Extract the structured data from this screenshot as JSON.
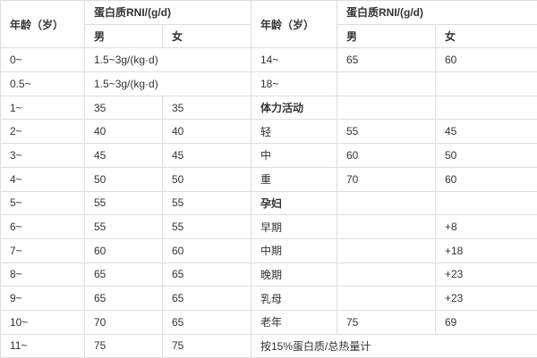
{
  "colors": {
    "border": "#dddddd",
    "text": "#333333",
    "background": "#ffffff"
  },
  "chart_data": {
    "type": "table",
    "title": "",
    "header_row_1": [
      {
        "text": "年龄（岁）",
        "rowspan": 2
      },
      {
        "text": "蛋白质RNI/(g/d)",
        "colspan": 2
      },
      {
        "text": "年龄（岁）",
        "rowspan": 2
      },
      {
        "text": "蛋白质RNI/(g/d)",
        "colspan": 2
      }
    ],
    "header_row_2": [
      {
        "text": "男"
      },
      {
        "text": "女"
      },
      {
        "text": "男"
      },
      {
        "text": "女"
      }
    ],
    "rows": [
      [
        {
          "text": "0~"
        },
        {
          "text": "1.5~3g/(kg·d)",
          "colspan": 2
        },
        {
          "text": "14~"
        },
        {
          "text": "65"
        },
        {
          "text": "60"
        }
      ],
      [
        {
          "text": "0.5~"
        },
        {
          "text": "1.5~3g/(kg·d)",
          "colspan": 2
        },
        {
          "text": "18~"
        },
        {
          "text": ""
        },
        {
          "text": ""
        }
      ],
      [
        {
          "text": "1~"
        },
        {
          "text": "35"
        },
        {
          "text": "35"
        },
        {
          "text": "体力活动",
          "bold": true
        },
        {
          "text": ""
        },
        {
          "text": ""
        }
      ],
      [
        {
          "text": "2~"
        },
        {
          "text": "40"
        },
        {
          "text": "40"
        },
        {
          "text": "轻"
        },
        {
          "text": "55"
        },
        {
          "text": "45"
        }
      ],
      [
        {
          "text": "3~"
        },
        {
          "text": "45"
        },
        {
          "text": "45"
        },
        {
          "text": "中"
        },
        {
          "text": "60"
        },
        {
          "text": "50"
        }
      ],
      [
        {
          "text": "4~"
        },
        {
          "text": "50"
        },
        {
          "text": "50"
        },
        {
          "text": "重"
        },
        {
          "text": "70"
        },
        {
          "text": "60"
        }
      ],
      [
        {
          "text": "5~"
        },
        {
          "text": "55"
        },
        {
          "text": "55"
        },
        {
          "text": "孕妇",
          "bold": true
        },
        {
          "text": ""
        },
        {
          "text": ""
        }
      ],
      [
        {
          "text": "6~"
        },
        {
          "text": "55"
        },
        {
          "text": "55"
        },
        {
          "text": "早期"
        },
        {
          "text": ""
        },
        {
          "text": "+8"
        }
      ],
      [
        {
          "text": "7~"
        },
        {
          "text": "60"
        },
        {
          "text": "60"
        },
        {
          "text": "中期"
        },
        {
          "text": ""
        },
        {
          "text": "+18"
        }
      ],
      [
        {
          "text": "8~"
        },
        {
          "text": "65"
        },
        {
          "text": "65"
        },
        {
          "text": "晚期"
        },
        {
          "text": ""
        },
        {
          "text": "+23"
        }
      ],
      [
        {
          "text": "9~"
        },
        {
          "text": "65"
        },
        {
          "text": "65"
        },
        {
          "text": "乳母"
        },
        {
          "text": ""
        },
        {
          "text": "+23"
        }
      ],
      [
        {
          "text": "10~"
        },
        {
          "text": "70"
        },
        {
          "text": "65"
        },
        {
          "text": "老年"
        },
        {
          "text": "75"
        },
        {
          "text": "69"
        }
      ],
      [
        {
          "text": "11~"
        },
        {
          "text": "75"
        },
        {
          "text": "75"
        },
        {
          "text": "按15%蛋白质/总热量计",
          "colspan": 3
        }
      ]
    ]
  }
}
